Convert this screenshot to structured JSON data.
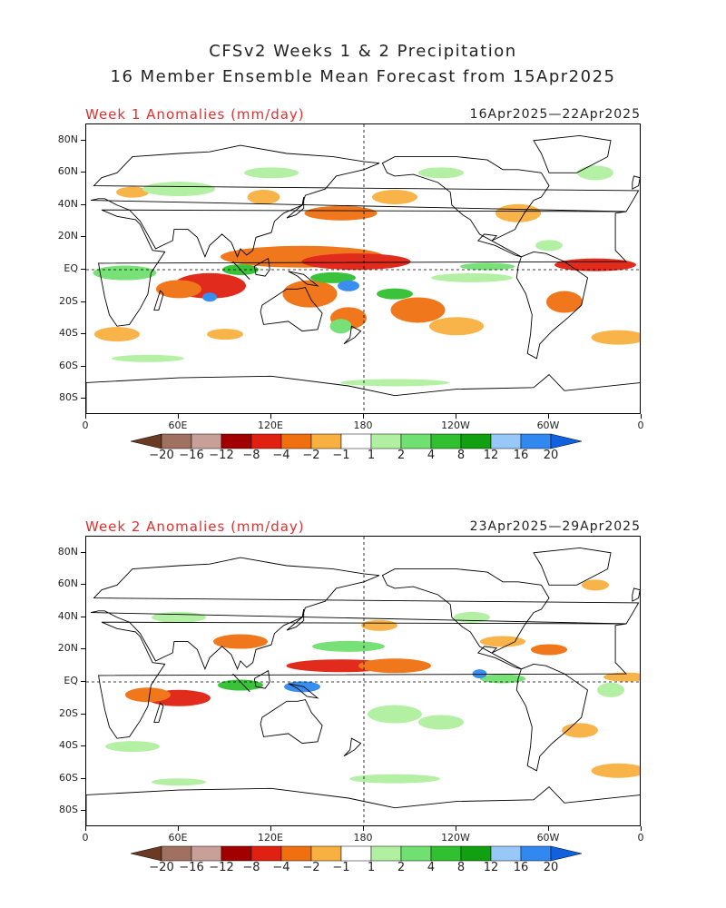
{
  "title_line1": "CFSv2 Weeks 1 & 2 Precipitation",
  "title_line2": "16 Member Ensemble Mean Forecast from 15Apr2025",
  "panels": [
    {
      "label": "Week 1 Anomalies (mm/day)",
      "dates": "16Apr2025—22Apr2025"
    },
    {
      "label": "Week 2 Anomalies (mm/day)",
      "dates": "23Apr2025—29Apr2025"
    }
  ],
  "lat_labels": [
    "80N",
    "60N",
    "40N",
    "20N",
    "EQ",
    "20S",
    "40S",
    "60S",
    "80S"
  ],
  "lon_labels": [
    "0",
    "60E",
    "120E",
    "180",
    "120W",
    "60W",
    "0"
  ],
  "colorbar": {
    "labels": [
      "−20",
      "−16",
      "−12",
      "−8",
      "−4",
      "−2",
      "−1",
      "1",
      "2",
      "4",
      "8",
      "12",
      "16",
      "20"
    ],
    "colors": [
      "#6b3a22",
      "#a07060",
      "#c8a098",
      "#a00000",
      "#e02010",
      "#f07010",
      "#f8b040",
      "#ffffff",
      "#b0f0a0",
      "#70e070",
      "#30c030",
      "#10a010",
      "#98c8f8",
      "#3088f0",
      "#1060e0"
    ]
  },
  "map_colors": {
    "dry_strong": "#e02010",
    "dry_mid": "#f07010",
    "dry_light": "#f8b040",
    "wet_light": "#b0f0a0",
    "wet_mid": "#70e070",
    "wet_strong": "#30c030",
    "wet_blue": "#3088f0"
  }
}
